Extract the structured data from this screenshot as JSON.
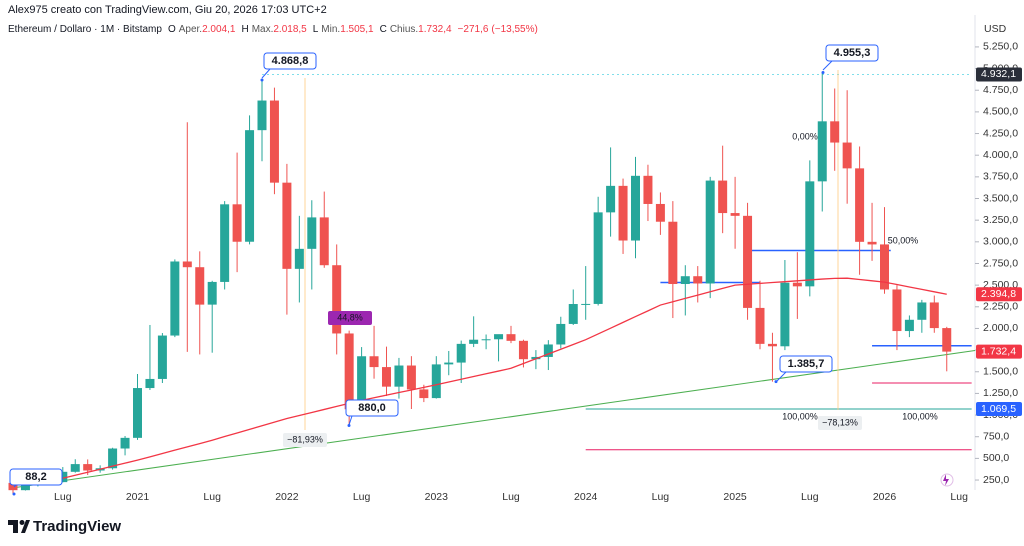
{
  "header": {
    "author_line": "Alex975 creato con TradingView.com, Giu 20, 2026 17:03 UTC+2",
    "symbol": "Ethereum / Dollaro · 1M · Bitstamp",
    "ohlc": [
      {
        "key": "O",
        "name": "Aper.",
        "value": 2004.1,
        "label": "2.004,1"
      },
      {
        "key": "H",
        "name": "Max.",
        "value": 2018.5,
        "label": "2.018,5"
      },
      {
        "key": "L",
        "name": "Min.",
        "value": 1505.1,
        "label": "1.505,1"
      },
      {
        "key": "C",
        "name": "Chius.",
        "value": 1732.4,
        "label": "1.732,4"
      }
    ],
    "change": {
      "value": -271.6,
      "label": "−271,6"
    },
    "change_pct": {
      "value": -13.55,
      "label": "(−13,55%)"
    }
  },
  "chart_data": {
    "type": "candlestick",
    "y_axis_title": "USD",
    "categories": [
      null,
      null,
      null,
      null,
      "Lug",
      null,
      null,
      null,
      null,
      null,
      "2021",
      null,
      null,
      null,
      null,
      null,
      "Lug",
      null,
      null,
      null,
      null,
      null,
      "2022",
      null,
      null,
      null,
      null,
      null,
      "Lug",
      null,
      null,
      null,
      null,
      null,
      "2023",
      null,
      null,
      null,
      null,
      null,
      "Lug",
      null,
      null,
      null,
      null,
      null,
      "2024",
      null,
      null,
      null,
      null,
      null,
      "Lug",
      null,
      null,
      null,
      null,
      null,
      "2025",
      null,
      null,
      null,
      null,
      null,
      "Lug",
      null,
      null,
      null,
      null,
      null,
      "2026",
      null,
      null,
      null,
      null,
      null,
      "Lug"
    ],
    "open": [
      217,
      133,
      206,
      231,
      226,
      345,
      434,
      360,
      386,
      614,
      737,
      1312,
      1417,
      1918,
      2773,
      2707,
      2275,
      2537,
      3433,
      3001,
      4289,
      4631,
      3683,
      2688,
      2919,
      3282,
      2730,
      1942,
      1067,
      1679,
      1554,
      1328,
      1572,
      1296,
      1196,
      1585,
      1606,
      1822,
      1870,
      1875,
      1934,
      1857,
      1645,
      1671,
      1815,
      2052,
      2282,
      2283,
      3340,
      3646,
      3015,
      3762,
      3437,
      3232,
      2513,
      2603,
      2519,
      3707,
      3332,
      3300,
      2237,
      1822,
      1794,
      2528,
      2486,
      3698,
      4391,
      4146,
      3848,
      3000,
      2970,
      2450,
      1970,
      2100,
      2300,
      2004.1,
      null
    ],
    "high": [
      253,
      227,
      247,
      253,
      400,
      490,
      488,
      420,
      623,
      758,
      1474,
      2040,
      1947,
      2797,
      4380,
      2890,
      2550,
      3470,
      4030,
      4460,
      4868.8,
      4780,
      3900,
      3300,
      3480,
      3580,
      2970,
      1975,
      1785,
      2030,
      1790,
      1660,
      1680,
      1350,
      1680,
      1740,
      1860,
      2140,
      1930,
      1930,
      2030,
      1870,
      1750,
      1865,
      2135,
      2450,
      2720,
      3520,
      4090,
      3730,
      3980,
      3890,
      3570,
      3470,
      2730,
      2720,
      3750,
      4110,
      3750,
      3450,
      2550,
      1950,
      2790,
      2880,
      3940,
      4955.3,
      4770,
      4750,
      4100,
      3450,
      3400,
      2500,
      2150,
      2330,
      2380,
      2018.5,
      null
    ],
    "low": [
      88.2,
      129,
      176,
      216,
      223,
      335,
      308,
      335,
      370,
      535,
      714,
      1290,
      1370,
      1900,
      1730,
      1700,
      1720,
      2450,
      2650,
      2970,
      3930,
      3550,
      2160,
      2300,
      2450,
      2700,
      1700,
      880,
      1000,
      1420,
      1220,
      1190,
      1070,
      1150,
      1190,
      1460,
      1370,
      1785,
      1760,
      1620,
      1830,
      1550,
      1530,
      1520,
      1770,
      2040,
      2100,
      2265,
      3060,
      2860,
      2810,
      3240,
      3080,
      2120,
      2150,
      2300,
      2350,
      3100,
      2920,
      2100,
      1760,
      1385.7,
      1750,
      2110,
      2370,
      3350,
      3820,
      3440,
      2620,
      2780,
      2400,
      1750,
      1900,
      1950,
      1950,
      1505.1,
      null
    ],
    "close": [
      133,
      206,
      231,
      226,
      345,
      434,
      360,
      386,
      614,
      737,
      1312,
      1417,
      1918,
      2773,
      2707,
      2275,
      2537,
      3433,
      3001,
      4289,
      4631,
      3683,
      2688,
      2919,
      3282,
      2730,
      1942,
      1067,
      1679,
      1554,
      1328,
      1572,
      1296,
      1196,
      1585,
      1606,
      1822,
      1870,
      1875,
      1934,
      1857,
      1645,
      1671,
      1815,
      2052,
      2282,
      2283,
      3340,
      3646,
      3015,
      3762,
      3437,
      3232,
      2513,
      2603,
      2519,
      3707,
      3332,
      3300,
      2237,
      1822,
      1794,
      2528,
      2486,
      3698,
      4391,
      4146,
      3848,
      3000,
      2970,
      2450,
      1970,
      2100,
      2300,
      2004.1,
      1732.4,
      null
    ],
    "colors": {
      "up": "#26a69a",
      "down": "#ef5350"
    },
    "ylim": [
      135,
      5630
    ],
    "yticks": [
      {
        "value": 250,
        "label": "250,0"
      },
      {
        "value": 500,
        "label": "500,0"
      },
      {
        "value": 750,
        "label": "750,0"
      },
      {
        "value": 1000,
        "label": "1.000,0"
      },
      {
        "value": 1250,
        "label": "1.250,0"
      },
      {
        "value": 1500,
        "label": "1.500,0"
      },
      {
        "value": 1750,
        "label": "1.750,0"
      },
      {
        "value": 2000,
        "label": "2.000,0"
      },
      {
        "value": 2250,
        "label": "2.250,0"
      },
      {
        "value": 2500,
        "label": "2.500,0"
      },
      {
        "value": 2750,
        "label": "2.750,0"
      },
      {
        "value": 3000,
        "label": "3.000,0"
      },
      {
        "value": 3250,
        "label": "3.250,0"
      },
      {
        "value": 3500,
        "label": "3.500,0"
      },
      {
        "value": 3750,
        "label": "3.750,0"
      },
      {
        "value": 4000,
        "label": "4.000,0"
      },
      {
        "value": 4250,
        "label": "4.250,0"
      },
      {
        "value": 4500,
        "label": "4.500,0"
      },
      {
        "value": 4750,
        "label": "4.750,0"
      },
      {
        "value": 5000,
        "label": "5.000,0"
      },
      {
        "value": 5250,
        "label": "5.250,0"
      }
    ],
    "ma": {
      "color": "#f23645",
      "values": [
        null,
        null,
        null,
        null,
        270,
        305,
        340,
        375,
        410,
        445,
        480,
        518,
        556,
        595,
        633,
        671,
        710,
        752,
        793,
        835,
        877,
        918,
        960,
        995,
        1030,
        1065,
        1100,
        1135,
        1170,
        1200,
        1230,
        1260,
        1290,
        1320,
        1350,
        1382,
        1413,
        1445,
        1477,
        1508,
        1540,
        1595,
        1650,
        1705,
        1760,
        1815,
        1870,
        1937,
        2003,
        2070,
        2137,
        2203,
        2270,
        2308,
        2347,
        2385,
        2423,
        2462,
        2500,
        2510,
        2520,
        2530,
        2540,
        2550,
        2560,
        2570,
        2578,
        2580,
        2565,
        2550,
        2535,
        2507,
        2479,
        2451,
        2423,
        2394.8,
        null
      ]
    },
    "trendline": {
      "color": "#4caf50",
      "start": 160,
      "end": 1745
    },
    "levels": [
      {
        "value": 2900,
        "color": "#2962ff"
      },
      {
        "value": 2530,
        "color": "#2962ff"
      },
      {
        "value": 1800,
        "color": "#2962ff"
      },
      {
        "value": 1370,
        "color": "#e91e63"
      },
      {
        "value": 1069.5,
        "color": "#26a69a"
      },
      {
        "value": 600,
        "color": "#e91e63"
      },
      {
        "value": 4932.1,
        "color": "#80deea"
      }
    ],
    "price_labels": [
      {
        "value": 4932.1,
        "label": "4.932,1",
        "color": "#2a2e39"
      },
      {
        "value": 2394.8,
        "label": "2.394,8",
        "color": "#f23645"
      },
      {
        "value": 1732.4,
        "label": "1.732,4",
        "color": "#f23645"
      },
      {
        "value": 1069.5,
        "label": "1.069,5",
        "color": "#2962ff"
      }
    ],
    "point_labels": [
      {
        "value": 4868.8,
        "label": "4.868,8",
        "color": "#2962ff"
      },
      {
        "value": 4955.3,
        "label": "4.955,3",
        "color": "#2962ff"
      },
      {
        "value": 880,
        "label": "880,0",
        "color": "#f23645"
      },
      {
        "value": 88.2,
        "label": "88,2",
        "color": "#f23645"
      },
      {
        "value": 1385.7,
        "label": "1.385,7",
        "color": "#f23645"
      }
    ],
    "notes": [
      {
        "label": "0,00%",
        "color": "#80deea"
      },
      {
        "label": "50,00%",
        "color": "#2962ff"
      },
      {
        "label": "100,00%",
        "color": "#80deea"
      },
      {
        "label": "100,00%",
        "color": "#80deea"
      },
      {
        "label": "−81,93%",
        "color": "#131722"
      },
      {
        "label": "−78,13%",
        "color": "#131722"
      },
      {
        "label": "44,8%",
        "color": "#9c27b0"
      }
    ]
  },
  "footer": {
    "logo": "TradingView"
  }
}
